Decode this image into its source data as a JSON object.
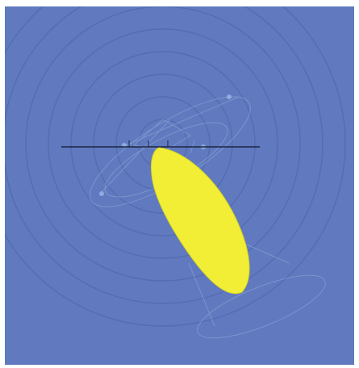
{
  "scene": {
    "background_color": "#6079bf",
    "ring_color": "#4f68ad",
    "wire_color": "#8fb0d8",
    "axis_color": "#1c2440",
    "leaf_color": "#f2ee35",
    "leaf_edge_color": "#d8d224",
    "border_color": "#ffffff"
  }
}
